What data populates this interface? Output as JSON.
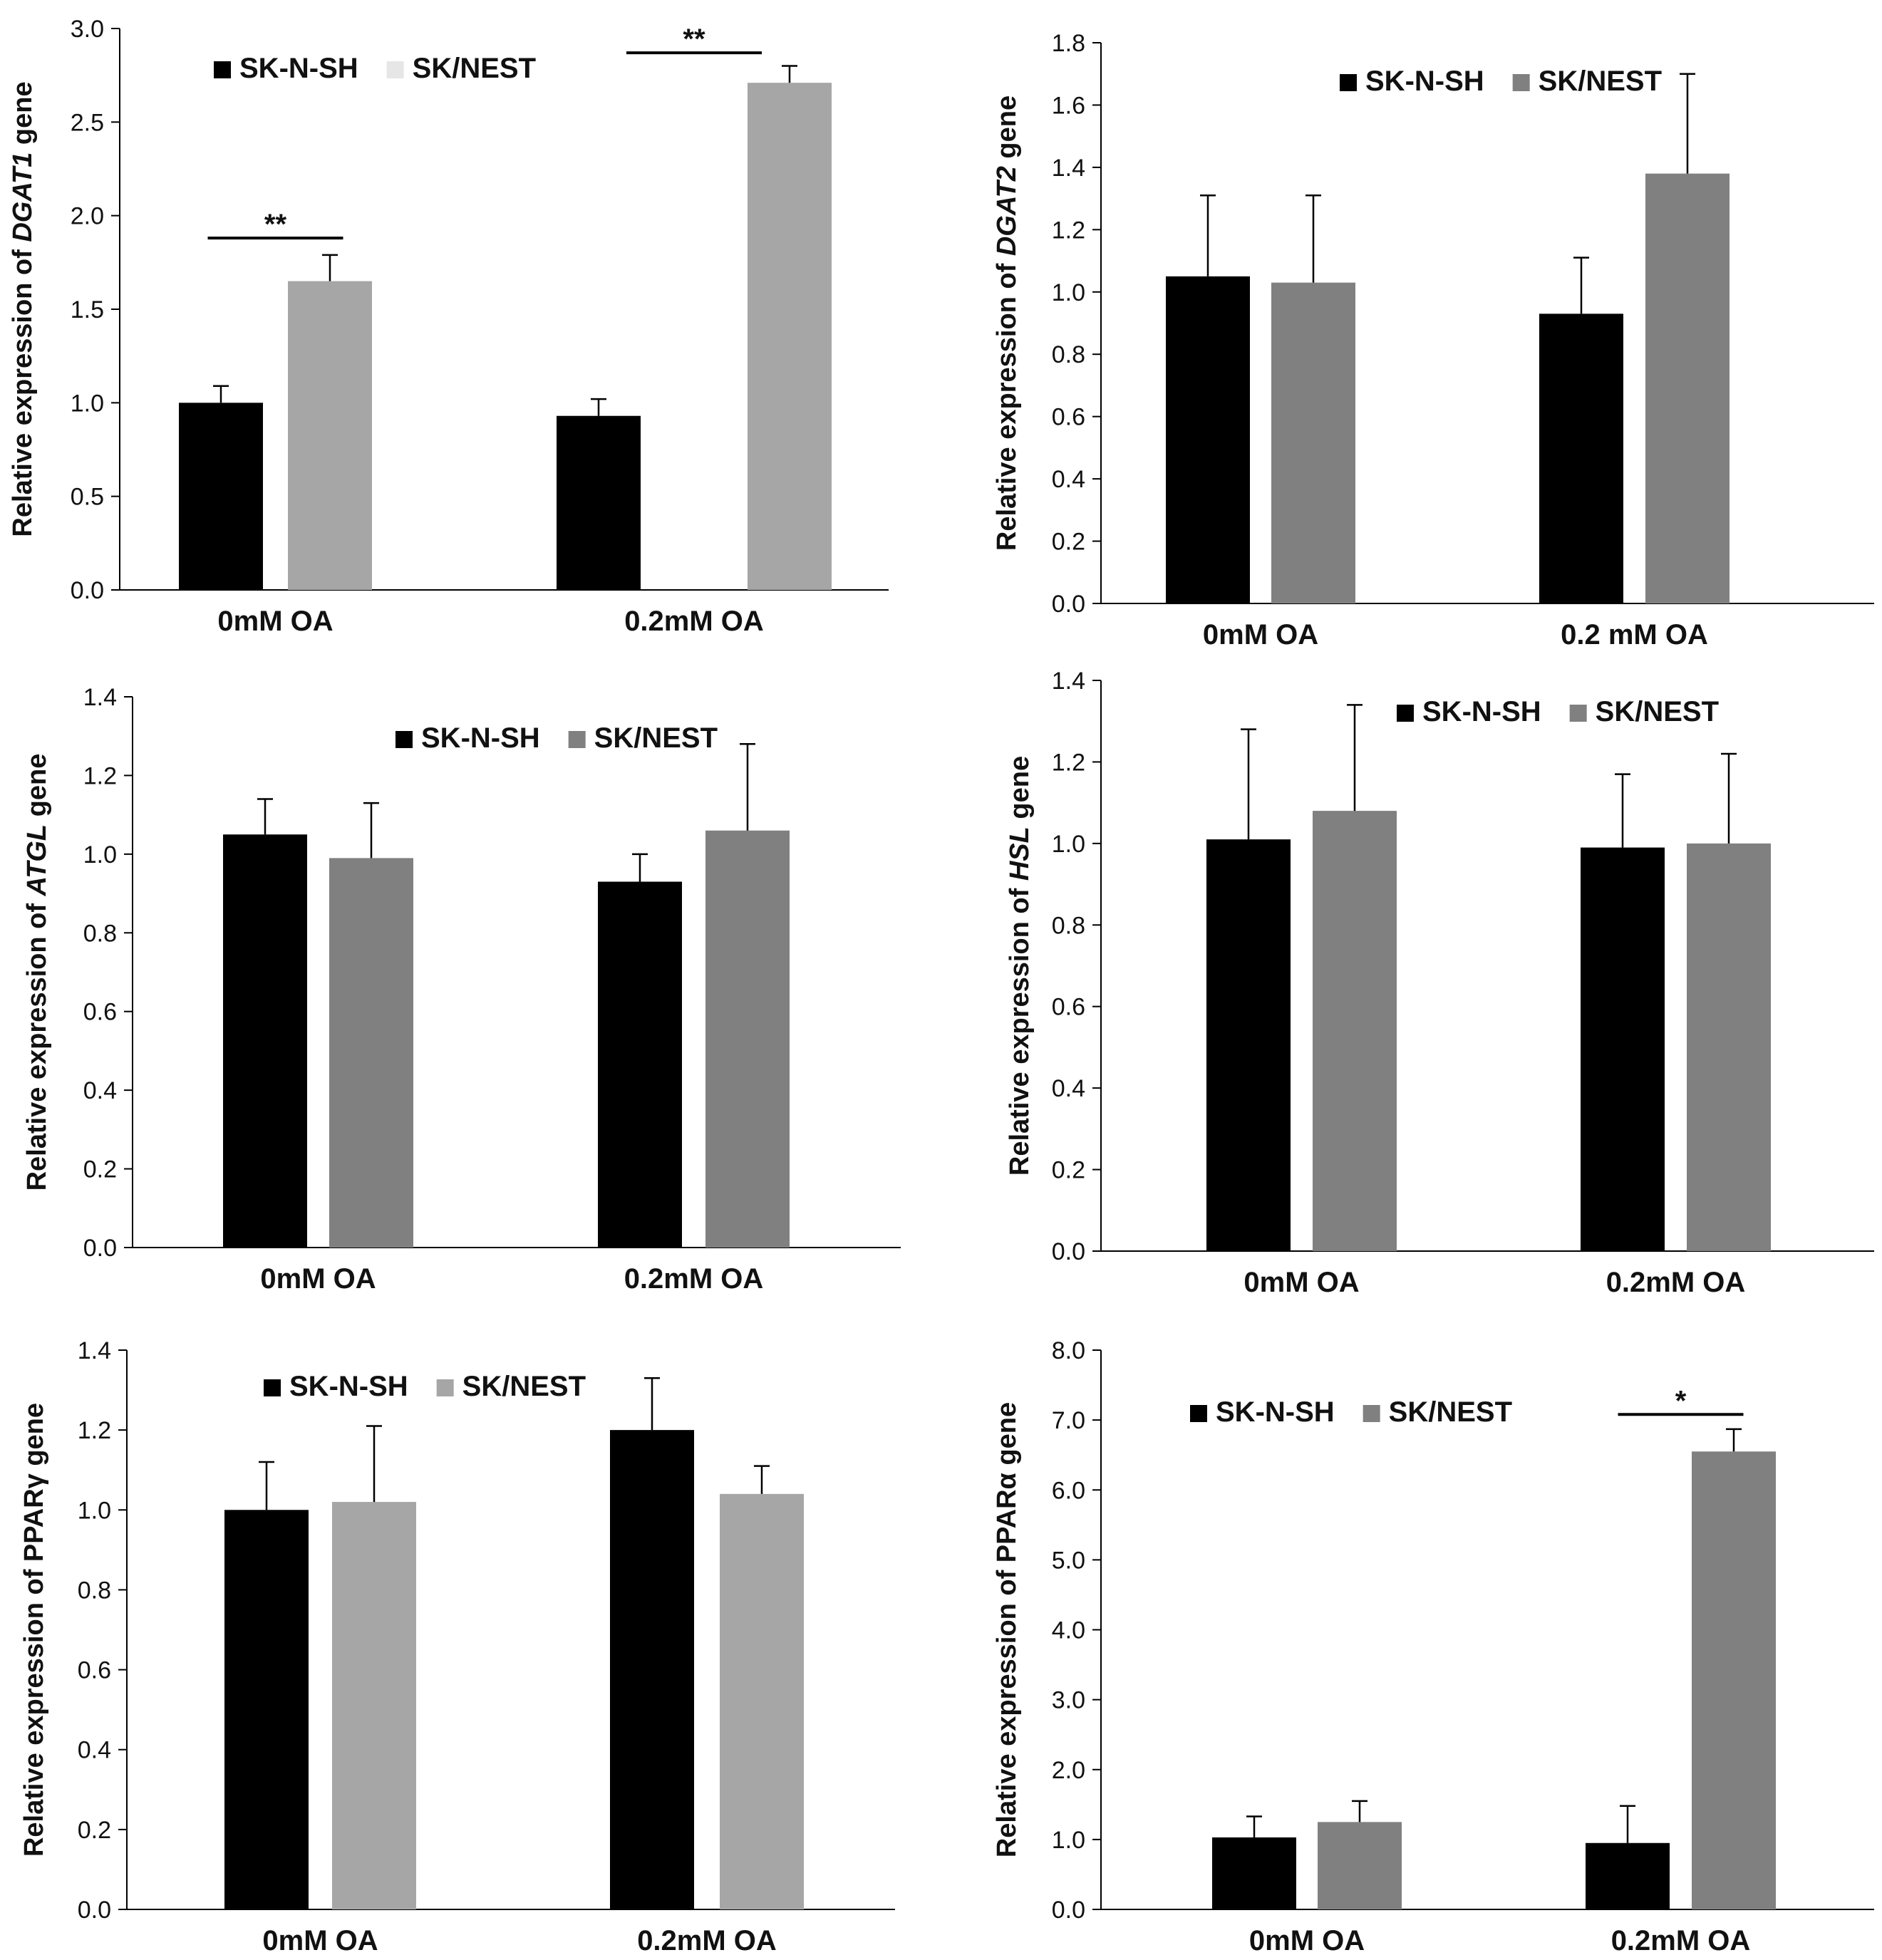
{
  "colors": {
    "black": "#000000",
    "light_gray": "#a6a6a6",
    "dark_gray": "#808080",
    "legend_pale": "#e6e6e6",
    "axis": "#000000"
  },
  "chart_data": [
    {
      "id": "dgat1",
      "type": "bar",
      "title": "",
      "ylabel": {
        "prefix": "Relative expression of ",
        "gene": "DGAT1",
        "suffix": " gene",
        "italic": true
      },
      "categories": [
        "0mM OA",
        "0.2mM OA"
      ],
      "series": [
        {
          "name": "SK-N-SH",
          "color": "#000000",
          "values": [
            1.0,
            0.93
          ],
          "errors": [
            0.09,
            0.09
          ]
        },
        {
          "name": "SK/NEST",
          "color": "#a6a6a6",
          "legend_color": "#e6e6e6",
          "values": [
            1.65,
            2.71
          ],
          "errors": [
            0.14,
            0.09
          ]
        }
      ],
      "ylim": [
        0,
        3.0
      ],
      "yticks": [
        "0.0",
        "0.5",
        "1.0",
        "1.5",
        "2.0",
        "2.5",
        "3.0"
      ],
      "legend_position": "top-left",
      "significance": [
        {
          "category_index": 0,
          "label": "**",
          "y": 1.88
        },
        {
          "category_index": 1,
          "label": "**",
          "y": 2.87
        }
      ]
    },
    {
      "id": "dgat2",
      "type": "bar",
      "title": "",
      "ylabel": {
        "prefix": "Relative expression of ",
        "gene": "DGAT2",
        "suffix": " gene",
        "italic": true
      },
      "categories": [
        "0mM OA",
        "0.2 mM OA"
      ],
      "series": [
        {
          "name": "SK-N-SH",
          "color": "#000000",
          "values": [
            1.05,
            0.93
          ],
          "errors": [
            0.26,
            0.18
          ]
        },
        {
          "name": "SK/NEST",
          "color": "#808080",
          "values": [
            1.03,
            1.38
          ],
          "errors": [
            0.28,
            0.32
          ]
        }
      ],
      "ylim": [
        0,
        1.8
      ],
      "yticks": [
        "0.0",
        "0.2",
        "0.4",
        "0.6",
        "0.8",
        "1.0",
        "1.2",
        "1.4",
        "1.6",
        "1.8"
      ],
      "legend_position": "top-center",
      "significance": []
    },
    {
      "id": "atgl",
      "type": "bar",
      "title": "",
      "ylabel": {
        "prefix": "Relative expression of ",
        "gene": "ATGL",
        "suffix": " gene",
        "italic": true
      },
      "categories": [
        "0mM OA",
        "0.2mM OA"
      ],
      "series": [
        {
          "name": "SK-N-SH",
          "color": "#000000",
          "values": [
            1.05,
            0.93
          ],
          "errors": [
            0.09,
            0.07
          ]
        },
        {
          "name": "SK/NEST",
          "color": "#808080",
          "values": [
            0.99,
            1.06
          ],
          "errors": [
            0.14,
            0.22
          ]
        }
      ],
      "ylim": [
        0,
        1.4
      ],
      "yticks": [
        "0.0",
        "0.2",
        "0.4",
        "0.6",
        "0.8",
        "1.0",
        "1.2",
        "1.4"
      ],
      "legend_position": "top-center",
      "significance": []
    },
    {
      "id": "hsl",
      "type": "bar",
      "title": "",
      "ylabel": {
        "prefix": "Relative expression of ",
        "gene": "HSL",
        "suffix": " gene",
        "italic": true
      },
      "categories": [
        "0mM OA",
        "0.2mM OA"
      ],
      "series": [
        {
          "name": "SK-N-SH",
          "color": "#000000",
          "values": [
            1.01,
            0.99
          ],
          "errors": [
            0.27,
            0.18
          ]
        },
        {
          "name": "SK/NEST",
          "color": "#808080",
          "values": [
            1.08,
            1.0
          ],
          "errors": [
            0.26,
            0.22
          ]
        }
      ],
      "ylim": [
        0,
        1.4
      ],
      "yticks": [
        "0.0",
        "0.2",
        "0.4",
        "0.6",
        "0.8",
        "1.0",
        "1.2",
        "1.4"
      ],
      "legend_position": "top-center",
      "significance": []
    },
    {
      "id": "pparg",
      "type": "bar",
      "title": "",
      "ylabel": {
        "prefix": "Relative expression of ",
        "gene": "PPARγ",
        "suffix": " gene",
        "italic": false
      },
      "categories": [
        "0mM OA",
        "0.2mM OA"
      ],
      "series": [
        {
          "name": "SK-N-SH",
          "color": "#000000",
          "values": [
            1.0,
            1.2
          ],
          "errors": [
            0.12,
            0.13
          ]
        },
        {
          "name": "SK/NEST",
          "color": "#a6a6a6",
          "values": [
            1.02,
            1.04
          ],
          "errors": [
            0.19,
            0.07
          ]
        }
      ],
      "ylim": [
        0,
        1.4
      ],
      "yticks": [
        "0.0",
        "0.2",
        "0.4",
        "0.6",
        "0.8",
        "1.0",
        "1.2",
        "1.4"
      ],
      "legend_position": "top-center",
      "significance": []
    },
    {
      "id": "ppara",
      "type": "bar",
      "title": "",
      "ylabel": {
        "prefix": "Relative expression of ",
        "gene": "PPARα",
        "suffix": " gene",
        "italic": false
      },
      "categories": [
        "0mM OA",
        "0.2mM OA"
      ],
      "series": [
        {
          "name": "SK-N-SH",
          "color": "#000000",
          "values": [
            1.03,
            0.95
          ],
          "errors": [
            0.3,
            0.53
          ]
        },
        {
          "name": "SK/NEST",
          "color": "#808080",
          "values": [
            1.25,
            6.55
          ],
          "errors": [
            0.3,
            0.32
          ]
        }
      ],
      "ylim": [
        0,
        8.0
      ],
      "yticks": [
        "0.0",
        "1.0",
        "2.0",
        "3.0",
        "4.0",
        "5.0",
        "6.0",
        "7.0",
        "8.0"
      ],
      "legend_position": "top-left",
      "significance": [
        {
          "category_index": 1,
          "label": "*",
          "y": 7.08
        }
      ]
    }
  ]
}
